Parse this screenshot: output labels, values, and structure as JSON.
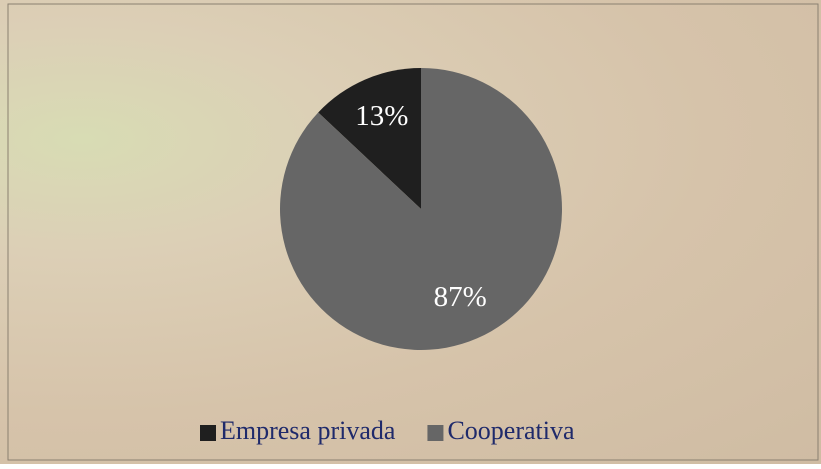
{
  "chart_data": {
    "type": "pie",
    "categories": [
      "Empresa privada",
      "Cooperativa"
    ],
    "values": [
      13,
      87
    ],
    "value_labels": [
      "13%",
      "87%"
    ],
    "colors": [
      "#1f1f1f",
      "#666666"
    ]
  }
}
